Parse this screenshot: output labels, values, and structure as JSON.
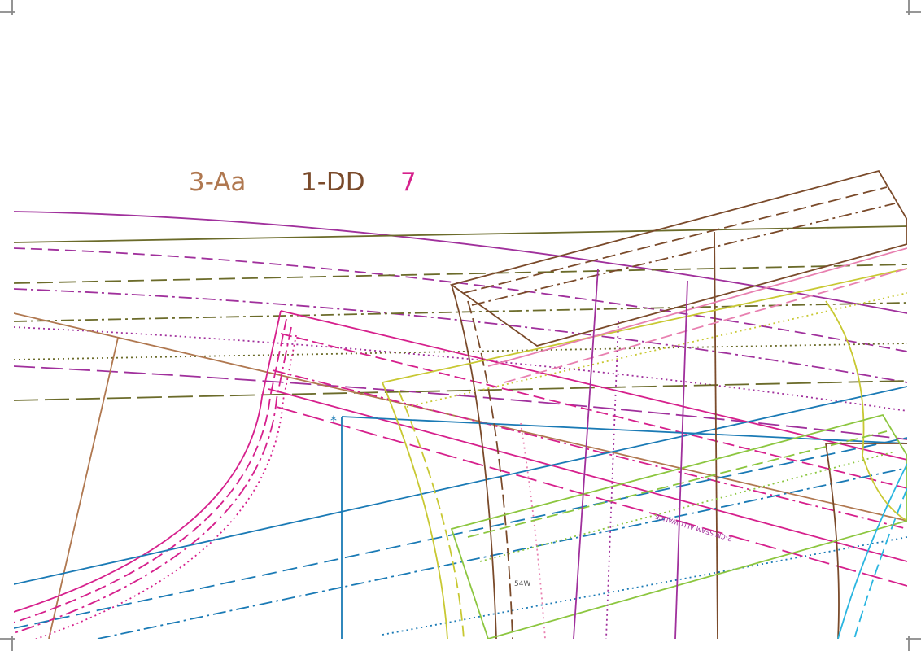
{
  "labels": {
    "left": "3-Aa",
    "middle": "1-DD",
    "right": "7"
  },
  "annotations": {
    "star": "*",
    "seam": "2-CM SEAM ALLOWANCE",
    "size": "54W"
  }
}
